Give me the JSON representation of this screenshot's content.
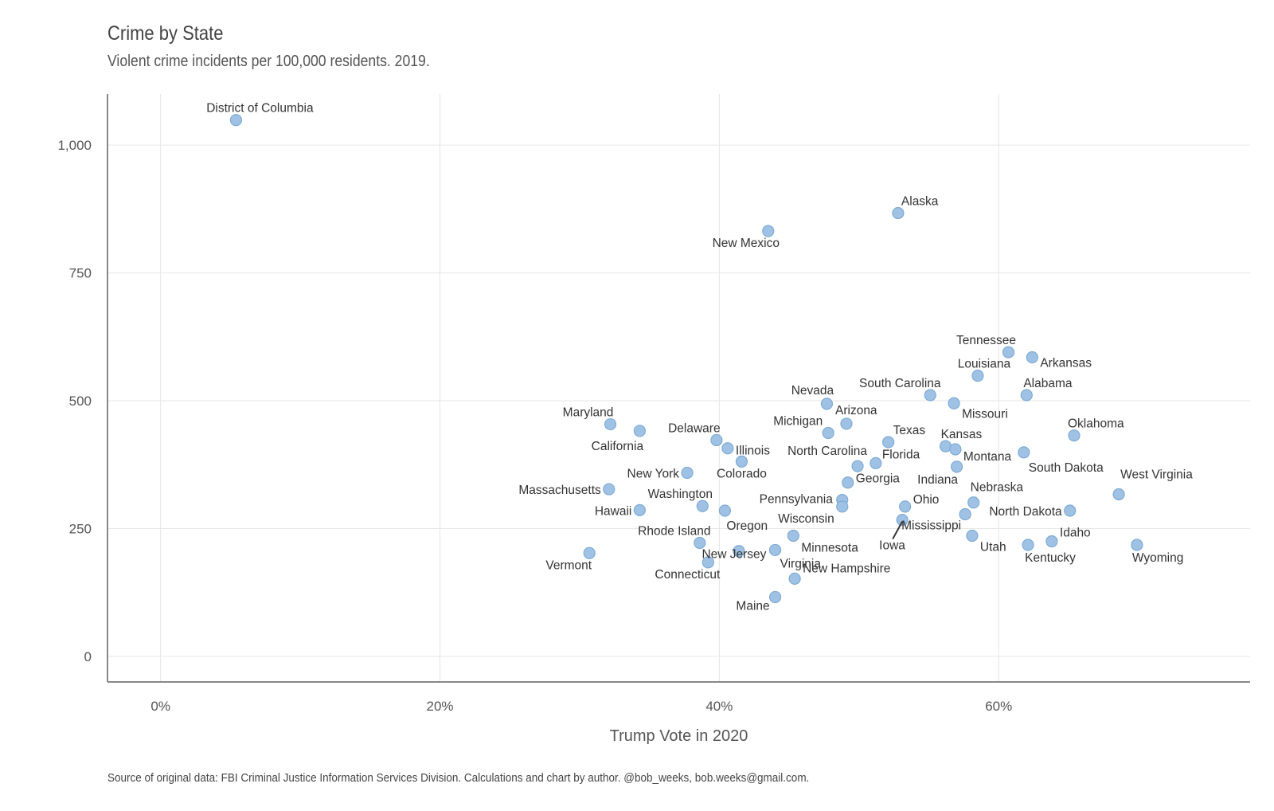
{
  "title": "Crime by State",
  "subtitle": "Violent crime incidents per 100,000 residents. 2019.",
  "caption": "Source of original data: FBI Criminal Justice Information Services Division. Calculations and chart by author. @bob_weeks, bob.weeks@gmail.com.",
  "colors": {
    "point_fill": "#9fc2e4",
    "point_stroke": "#7fabd6",
    "text": "#333333",
    "axis": "#888888",
    "grid": "#e6e6e6"
  },
  "chart_data": {
    "type": "scatter",
    "title": "Crime by State",
    "subtitle": "Violent crime incidents per 100,000 residents. 2019.",
    "xlabel": "Trump Vote in 2020",
    "ylabel": "",
    "x_unit": "percent",
    "xlim": [
      -3.8,
      78
    ],
    "ylim": [
      -50,
      1100
    ],
    "x_ticks": [
      0,
      20,
      40,
      60
    ],
    "x_tick_labels": [
      "0%",
      "20%",
      "40%",
      "60%"
    ],
    "y_ticks": [
      0,
      250,
      500,
      750,
      1000
    ],
    "y_tick_labels": [
      "0",
      "250",
      "500",
      "750",
      "1,000"
    ],
    "grid": true,
    "points": [
      {
        "label": "District of Columbia",
        "x": 5.4,
        "y": 1049
      },
      {
        "label": "Alaska",
        "x": 52.8,
        "y": 867
      },
      {
        "label": "New Mexico",
        "x": 43.5,
        "y": 832
      },
      {
        "label": "Tennessee",
        "x": 60.7,
        "y": 595
      },
      {
        "label": "Arkansas",
        "x": 62.4,
        "y": 585
      },
      {
        "label": "Louisiana",
        "x": 58.5,
        "y": 549
      },
      {
        "label": "Alabama",
        "x": 62.0,
        "y": 511
      },
      {
        "label": "South Carolina",
        "x": 55.1,
        "y": 511
      },
      {
        "label": "Missouri",
        "x": 56.8,
        "y": 495
      },
      {
        "label": "Nevada",
        "x": 47.7,
        "y": 494
      },
      {
        "label": "Arizona",
        "x": 49.1,
        "y": 455
      },
      {
        "label": "Maryland",
        "x": 32.2,
        "y": 454
      },
      {
        "label": "California",
        "x": 34.3,
        "y": 441
      },
      {
        "label": "Michigan",
        "x": 47.8,
        "y": 437
      },
      {
        "label": "Oklahoma",
        "x": 65.4,
        "y": 432
      },
      {
        "label": "Delaware",
        "x": 39.8,
        "y": 423
      },
      {
        "label": "Texas",
        "x": 52.1,
        "y": 419
      },
      {
        "label": "Kansas",
        "x": 56.2,
        "y": 411
      },
      {
        "label": "Illinois",
        "x": 40.6,
        "y": 407
      },
      {
        "label": "Montana",
        "x": 56.9,
        "y": 405
      },
      {
        "label": "South Dakota",
        "x": 61.8,
        "y": 399
      },
      {
        "label": "Colorado",
        "x": 41.6,
        "y": 381
      },
      {
        "label": "Florida",
        "x": 51.2,
        "y": 378
      },
      {
        "label": "North Carolina",
        "x": 49.9,
        "y": 372
      },
      {
        "label": "Indiana",
        "x": 57.0,
        "y": 371
      },
      {
        "label": "New York",
        "x": 37.7,
        "y": 359
      },
      {
        "label": "Georgia",
        "x": 49.2,
        "y": 340
      },
      {
        "label": "Massachusetts",
        "x": 32.1,
        "y": 327
      },
      {
        "label": "West Virginia",
        "x": 68.6,
        "y": 317
      },
      {
        "label": "Pennsylvania",
        "x": 48.8,
        "y": 306
      },
      {
        "label": "Nebraska",
        "x": 58.2,
        "y": 301
      },
      {
        "label": "Washington",
        "x": 38.8,
        "y": 294
      },
      {
        "label": "Ohio",
        "x": 53.3,
        "y": 293
      },
      {
        "label": "Wisconsin",
        "x": 48.8,
        "y": 293
      },
      {
        "label": "Hawaii",
        "x": 34.3,
        "y": 286
      },
      {
        "label": "Oregon",
        "x": 40.4,
        "y": 285
      },
      {
        "label": "North Dakota",
        "x": 65.1,
        "y": 285
      },
      {
        "label": "Mississippi",
        "x": 57.6,
        "y": 278
      },
      {
        "label": "Iowa",
        "x": 53.1,
        "y": 267
      },
      {
        "label": "Minnesota",
        "x": 45.3,
        "y": 236
      },
      {
        "label": "Utah",
        "x": 58.1,
        "y": 236
      },
      {
        "label": "Idaho",
        "x": 63.8,
        "y": 225
      },
      {
        "label": "Rhode Island",
        "x": 38.6,
        "y": 222
      },
      {
        "label": "Kentucky",
        "x": 62.1,
        "y": 218
      },
      {
        "label": "Wyoming",
        "x": 69.9,
        "y": 218
      },
      {
        "label": "Virginia",
        "x": 44.0,
        "y": 208
      },
      {
        "label": "New Jersey",
        "x": 41.4,
        "y": 206
      },
      {
        "label": "Vermont",
        "x": 30.7,
        "y": 202
      },
      {
        "label": "Connecticut",
        "x": 39.2,
        "y": 184
      },
      {
        "label": "New Hampshire",
        "x": 45.4,
        "y": 152
      },
      {
        "label": "Maine",
        "x": 44.0,
        "y": 116
      }
    ]
  }
}
